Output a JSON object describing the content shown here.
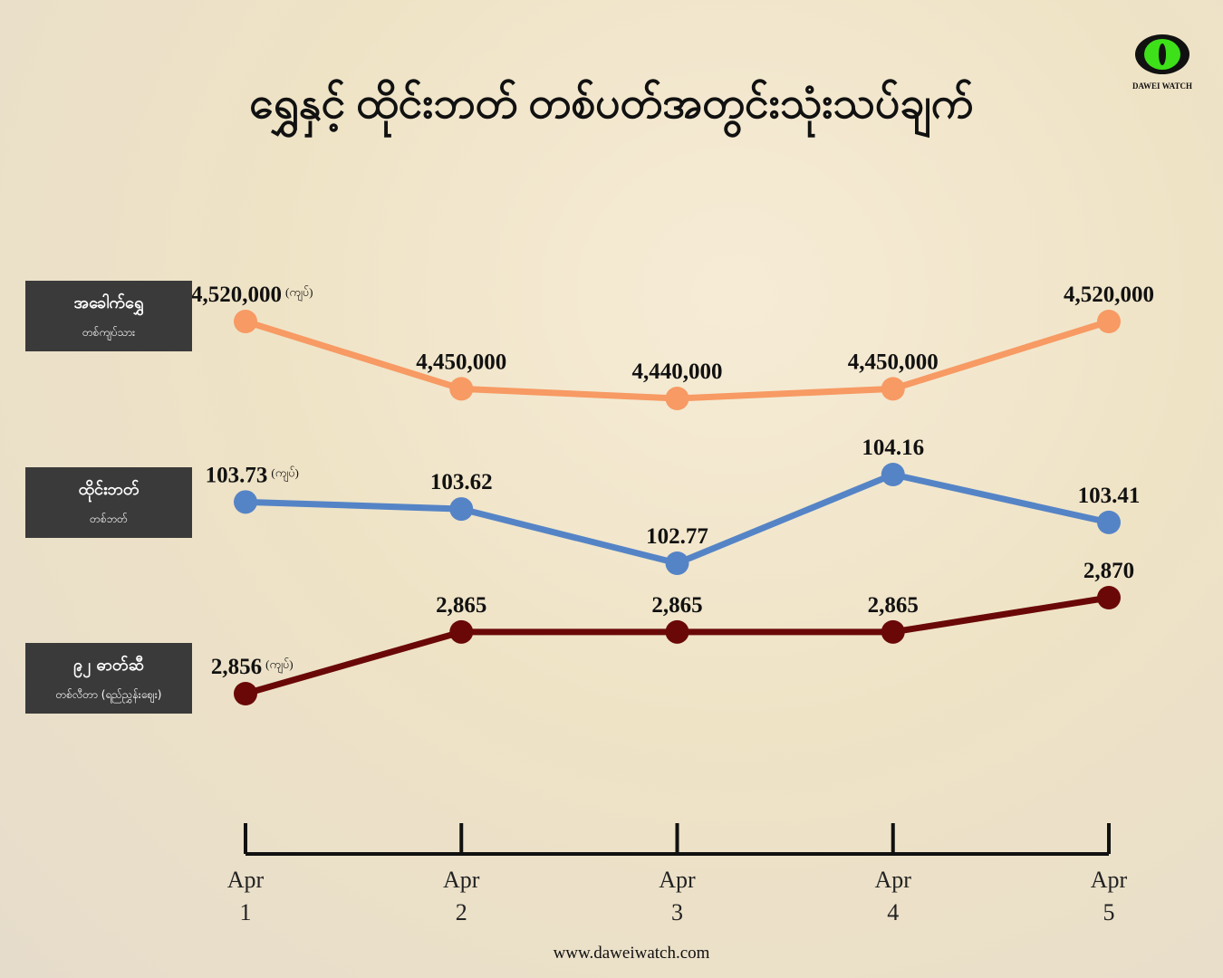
{
  "chart_data": {
    "type": "line",
    "title": "ရွှေနှင့် ထိုင်းဘတ် တစ်ပတ်အတွင်းသုံးသပ်ချက်",
    "logo": "DAWEI WATCH",
    "footer": "www.daweiwatch.com",
    "categories": [
      "Apr 1",
      "Apr 2",
      "Apr 3",
      "Apr 4",
      "Apr 5"
    ],
    "series": [
      {
        "name": "အခေါက်ရွှေ",
        "sublabel": "တစ်ကျပ်သား",
        "unit": "(ကျပ်)",
        "color": "#f79a63",
        "values": [
          4520000,
          4450000,
          4440000,
          4450000,
          4520000
        ],
        "value_labels": [
          "4,520,000",
          "4,450,000",
          "4,440,000",
          "4,450,000",
          "4,520,000"
        ]
      },
      {
        "name": "ထိုင်းဘတ်",
        "sublabel": "တစ်ဘတ်",
        "unit": "(ကျပ်)",
        "color": "#5584c6",
        "values": [
          103.73,
          103.62,
          102.77,
          104.16,
          103.41
        ]
      },
      {
        "name": "၉၂ ဓာတ်ဆီ",
        "sublabel": "တစ်လီတာ (ရည်ညွှန်းဈေး)",
        "unit": "(ကျပ်)",
        "color": "#6a0808",
        "values": [
          2856,
          2865,
          2865,
          2865,
          2870
        ],
        "value_labels": [
          "2,856",
          "2,865",
          "2,865",
          "2,865",
          "2,870"
        ]
      }
    ]
  }
}
